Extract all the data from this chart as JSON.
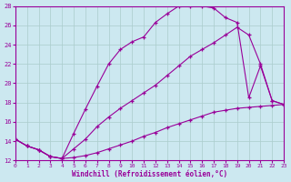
{
  "xlabel": "Windchill (Refroidissement éolien,°C)",
  "background_color": "#cce8f0",
  "grid_color": "#aacccc",
  "line_color": "#990099",
  "xlim": [
    0,
    23
  ],
  "ylim": [
    12,
    28
  ],
  "xticks": [
    0,
    1,
    2,
    3,
    4,
    5,
    6,
    7,
    8,
    9,
    10,
    11,
    12,
    13,
    14,
    15,
    16,
    17,
    18,
    19,
    20,
    21,
    22,
    23
  ],
  "yticks": [
    12,
    14,
    16,
    18,
    20,
    22,
    24,
    26,
    28
  ],
  "curve1_x": [
    0,
    1,
    2,
    3,
    4,
    5,
    6,
    7,
    8,
    9,
    10,
    11,
    12,
    13,
    14,
    15,
    16,
    17,
    18,
    19,
    20,
    21,
    22,
    23
  ],
  "curve1_y": [
    14.2,
    13.5,
    13.1,
    12.4,
    12.2,
    14.8,
    17.3,
    19.7,
    22.0,
    23.5,
    24.3,
    24.8,
    26.3,
    27.2,
    28.0,
    28.0,
    28.0,
    27.8,
    26.8,
    26.3,
    18.5,
    21.8,
    18.2,
    17.8
  ],
  "curve2_x": [
    0,
    1,
    2,
    3,
    4,
    5,
    6,
    7,
    8,
    9,
    10,
    11,
    12,
    13,
    14,
    15,
    16,
    17,
    18,
    19,
    20,
    21,
    22,
    23
  ],
  "curve2_y": [
    14.2,
    13.5,
    13.1,
    12.4,
    12.2,
    13.2,
    14.2,
    15.5,
    16.5,
    17.4,
    18.2,
    19.0,
    19.8,
    20.8,
    21.8,
    22.8,
    23.5,
    24.2,
    25.0,
    25.8,
    25.0,
    22.0,
    18.2,
    17.8
  ],
  "curve3_x": [
    0,
    1,
    2,
    3,
    4,
    5,
    6,
    7,
    8,
    9,
    10,
    11,
    12,
    13,
    14,
    15,
    16,
    17,
    18,
    19,
    20,
    21,
    22,
    23
  ],
  "curve3_y": [
    14.2,
    13.5,
    13.1,
    12.4,
    12.2,
    12.3,
    12.5,
    12.8,
    13.2,
    13.6,
    14.0,
    14.5,
    14.9,
    15.4,
    15.8,
    16.2,
    16.6,
    17.0,
    17.2,
    17.4,
    17.5,
    17.6,
    17.7,
    17.8
  ]
}
